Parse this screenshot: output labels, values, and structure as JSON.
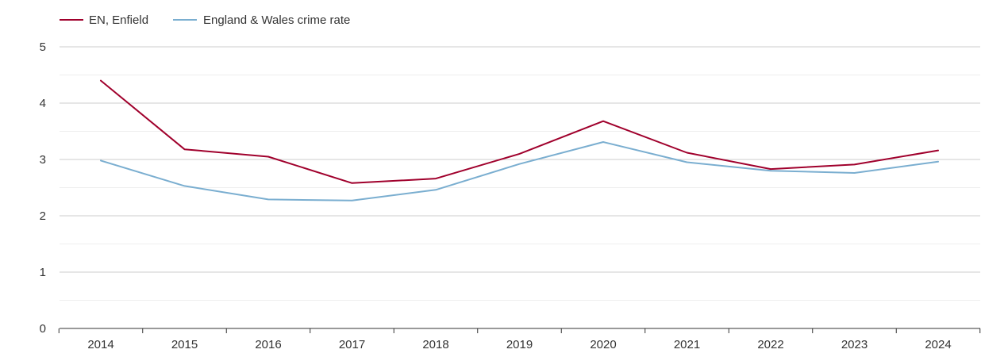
{
  "chart_data": {
    "type": "line",
    "title": "",
    "xlabel": "",
    "ylabel": "",
    "legend_position": "top-left",
    "categories": [
      "2014",
      "2015",
      "2016",
      "2017",
      "2018",
      "2019",
      "2020",
      "2021",
      "2022",
      "2023",
      "2024"
    ],
    "y_ticks": [
      "0",
      "1",
      "2",
      "3",
      "4",
      "5"
    ],
    "ylim": [
      0,
      5
    ],
    "minor_grid_step": 0.5,
    "series": [
      {
        "name": "EN, Enfield",
        "color": "#a0002c",
        "values": [
          4.4,
          3.18,
          3.05,
          2.58,
          2.66,
          3.1,
          3.68,
          3.12,
          2.83,
          2.91,
          3.16
        ]
      },
      {
        "name": "England & Wales crime rate",
        "color": "#7aaed0",
        "values": [
          2.98,
          2.53,
          2.29,
          2.27,
          2.46,
          2.92,
          3.31,
          2.95,
          2.8,
          2.76,
          2.96
        ]
      }
    ]
  }
}
